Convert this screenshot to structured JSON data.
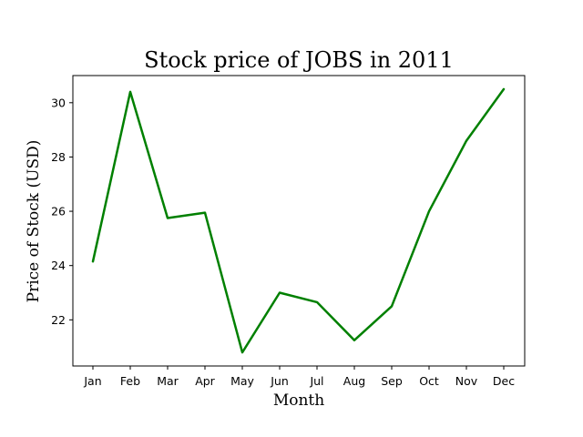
{
  "chart_data": {
    "type": "line",
    "title": "Stock price of JOBS in 2011",
    "xlabel": "Month",
    "ylabel": "Price of Stock (USD)",
    "categories": [
      "Jan",
      "Feb",
      "Mar",
      "Apr",
      "May",
      "Jun",
      "Jul",
      "Aug",
      "Sep",
      "Oct",
      "Nov",
      "Dec"
    ],
    "series": [
      {
        "values": [
          24.15,
          30.4,
          25.75,
          25.95,
          20.8,
          23.0,
          22.65,
          21.25,
          22.5,
          26.0,
          28.6,
          30.5
        ],
        "color": "#008000"
      }
    ],
    "ylim": [
      20.3,
      31.0
    ],
    "yticks": [
      22,
      24,
      26,
      28,
      30
    ],
    "grid": false,
    "legend": "none"
  }
}
